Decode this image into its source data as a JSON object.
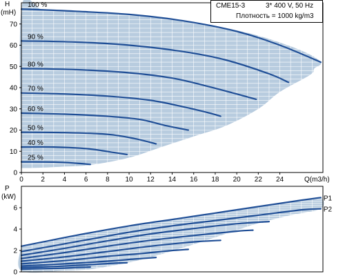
{
  "colors": {
    "envelope": "#b8ccdf",
    "curve": "#1f4e96",
    "grid": "#ffffff",
    "axis": "#000000"
  },
  "info": {
    "model": "CME15-3",
    "supply": "3* 400 V, 50 Hz",
    "density": "Плотность = 1000 kg/m3"
  },
  "chart_data": [
    {
      "type": "line",
      "name": "QH",
      "ylabel_top": "H",
      "ylabel_unit": "(mH)",
      "xlabel": "Q(m3/h)",
      "xlim": [
        0,
        28
      ],
      "ylim": [
        0,
        80
      ],
      "xticks": [
        0,
        2,
        4,
        6,
        8,
        10,
        12,
        14,
        16,
        18,
        20,
        22,
        24
      ],
      "yticks": [
        0,
        10,
        20,
        30,
        40,
        50,
        60,
        70
      ],
      "grid": true,
      "envelope": [
        [
          0,
          2
        ],
        [
          2,
          2.3
        ],
        [
          4,
          2.8
        ],
        [
          6.5,
          3.6
        ],
        [
          10,
          7
        ],
        [
          13,
          12
        ],
        [
          16,
          17
        ],
        [
          19,
          22
        ],
        [
          22,
          30
        ],
        [
          24,
          38
        ],
        [
          26.8,
          46
        ],
        [
          27.2,
          49
        ],
        [
          27.8,
          52
        ],
        [
          26,
          57.5
        ],
        [
          22,
          64.5
        ],
        [
          18,
          69
        ],
        [
          14,
          72
        ],
        [
          10,
          74.5
        ],
        [
          6,
          76
        ],
        [
          2,
          76.8
        ],
        [
          0,
          77
        ]
      ],
      "series": [
        {
          "name": "100 %",
          "points": [
            [
              0,
              77
            ],
            [
              5,
              76
            ],
            [
              10,
              74.5
            ],
            [
              15,
              71.5
            ],
            [
              20,
              66.5
            ],
            [
              24,
              60
            ],
            [
              27.8,
              52
            ]
          ]
        },
        {
          "name": "90 %",
          "points": [
            [
              0,
              62
            ],
            [
              5,
              61.5
            ],
            [
              10,
              60
            ],
            [
              15,
              57
            ],
            [
              19,
              53
            ],
            [
              23,
              46.5
            ],
            [
              24.8,
              42.5
            ]
          ]
        },
        {
          "name": "80 %",
          "points": [
            [
              0,
              49
            ],
            [
              5,
              48.5
            ],
            [
              10,
              47
            ],
            [
              14,
              44.5
            ],
            [
              17,
              41
            ],
            [
              20,
              37
            ],
            [
              21.8,
              34.5
            ]
          ]
        },
        {
          "name": "70 %",
          "points": [
            [
              0,
              37.5
            ],
            [
              4,
              37
            ],
            [
              8,
              36
            ],
            [
              12,
              34
            ],
            [
              15,
              31
            ],
            [
              17.5,
              28
            ],
            [
              18.5,
              26.5
            ]
          ]
        },
        {
          "name": "60 %",
          "points": [
            [
              0,
              28
            ],
            [
              4,
              27.5
            ],
            [
              8,
              26.5
            ],
            [
              11,
              25
            ],
            [
              13.5,
              22
            ],
            [
              15.5,
              20
            ]
          ]
        },
        {
          "name": "50 %",
          "points": [
            [
              0,
              19
            ],
            [
              4,
              18.8
            ],
            [
              8,
              18
            ],
            [
              10.5,
              16
            ],
            [
              12.5,
              13.5
            ]
          ]
        },
        {
          "name": "40 %",
          "points": [
            [
              0,
              12
            ],
            [
              3,
              12
            ],
            [
              6,
              11.3
            ],
            [
              8.5,
              9.5
            ],
            [
              9.8,
              8.5
            ]
          ]
        },
        {
          "name": "25 %",
          "points": [
            [
              0,
              5
            ],
            [
              3,
              4.9
            ],
            [
              5,
              4.4
            ],
            [
              6.4,
              3.8
            ]
          ]
        }
      ]
    },
    {
      "type": "line",
      "name": "P",
      "ylabel_top": "P",
      "ylabel_unit": "(kW)",
      "xlim": [
        0,
        28
      ],
      "ylim": [
        0,
        8
      ],
      "yticks": [
        0,
        2,
        4,
        6
      ],
      "grid": true,
      "envelope": [
        [
          0,
          2.4
        ],
        [
          2,
          2.8
        ],
        [
          5,
          3.4
        ],
        [
          10,
          4.3
        ],
        [
          14,
          4.9
        ],
        [
          18,
          5.5
        ],
        [
          22,
          6.1
        ],
        [
          26,
          6.7
        ],
        [
          27.8,
          6.95
        ],
        [
          27.8,
          5.9
        ],
        [
          25,
          5.3
        ],
        [
          22,
          4.55
        ],
        [
          20,
          3.9
        ],
        [
          17,
          2.9
        ],
        [
          14,
          1.95
        ],
        [
          11,
          1.1
        ],
        [
          8,
          0.5
        ],
        [
          6,
          0.2
        ],
        [
          4,
          0.1
        ],
        [
          0,
          0.1
        ]
      ],
      "series": [
        {
          "name": "P1",
          "points": [
            [
              0,
              2.4
            ],
            [
              2,
              2.8
            ],
            [
              5,
              3.4
            ],
            [
              10,
              4.3
            ],
            [
              14,
              4.9
            ],
            [
              18,
              5.5
            ],
            [
              22,
              6.1
            ],
            [
              26,
              6.7
            ],
            [
              27.8,
              6.95
            ]
          ]
        },
        {
          "name": "P2",
          "points": [
            [
              0,
              1.9
            ],
            [
              5,
              2.8
            ],
            [
              10,
              3.7
            ],
            [
              14,
              4.3
            ],
            [
              18,
              4.8
            ],
            [
              22,
              5.3
            ],
            [
              26,
              5.8
            ],
            [
              27.8,
              5.9
            ]
          ]
        },
        {
          "name": "",
          "points": [
            [
              0,
              1.55
            ],
            [
              4,
              2.2
            ],
            [
              8,
              2.9
            ],
            [
              12,
              3.55
            ],
            [
              16,
              4.05
            ],
            [
              20,
              4.5
            ],
            [
              23,
              4.7
            ]
          ]
        },
        {
          "name": "",
          "points": [
            [
              0,
              1.25
            ],
            [
              4,
              1.8
            ],
            [
              8,
              2.4
            ],
            [
              12,
              2.95
            ],
            [
              16,
              3.4
            ],
            [
              20,
              3.8
            ],
            [
              21.5,
              3.9
            ]
          ]
        },
        {
          "name": "",
          "points": [
            [
              0,
              1.0
            ],
            [
              4,
              1.4
            ],
            [
              8,
              1.9
            ],
            [
              12,
              2.4
            ],
            [
              16,
              2.8
            ],
            [
              18.5,
              2.95
            ]
          ]
        },
        {
          "name": "",
          "points": [
            [
              0,
              0.75
            ],
            [
              4,
              1.05
            ],
            [
              8,
              1.45
            ],
            [
              11,
              1.7
            ],
            [
              13.5,
              1.95
            ],
            [
              15.5,
              2.1
            ]
          ]
        },
        {
          "name": "",
          "points": [
            [
              0,
              0.55
            ],
            [
              4,
              0.75
            ],
            [
              8,
              1.0
            ],
            [
              10.5,
              1.2
            ],
            [
              12.5,
              1.35
            ]
          ]
        },
        {
          "name": "",
          "points": [
            [
              0,
              0.4
            ],
            [
              3,
              0.5
            ],
            [
              6,
              0.65
            ],
            [
              8.5,
              0.8
            ],
            [
              9.8,
              0.85
            ]
          ]
        },
        {
          "name": "",
          "points": [
            [
              0,
              0.25
            ],
            [
              2,
              0.3
            ],
            [
              4,
              0.35
            ],
            [
              5,
              0.4
            ],
            [
              6.4,
              0.45
            ]
          ]
        }
      ]
    }
  ]
}
